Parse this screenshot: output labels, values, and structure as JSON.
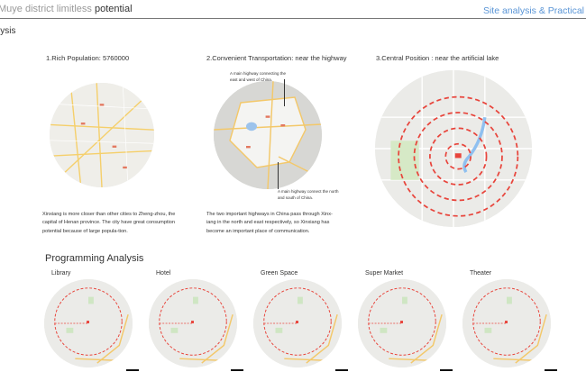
{
  "header": {
    "title_light": "Muye district limitless ",
    "title_dark": "potential",
    "right_title": "Site analysis & Practical",
    "section": "lysis"
  },
  "site": {
    "items": [
      {
        "heading": "1.Rich Population: 5760000",
        "text": "Xinxiang is more closer than other cities to Zheng-zhou, the capital of Henan province. The city have great consumption potential because of large popula-tion."
      },
      {
        "heading": "2.Convenient Transportation: near the highway",
        "text": "The two important highways in China pass through Xinx-iang in the north and east respectively, so Xinxiang has become an important place of communication.",
        "notes": [
          "A main highway connecting the east and west of China.",
          "A main highway connect the north and south of China."
        ]
      },
      {
        "heading": "3.Central Position : near the artificial lake"
      }
    ]
  },
  "programming": {
    "title": "Programming Analysis",
    "items": [
      "Library",
      "Hotel",
      "Green Space",
      "Super Market",
      "Theater"
    ]
  },
  "colors": {
    "accent": "#5a95d6",
    "ring": "#e8453c",
    "map": "#e9e9e7"
  }
}
